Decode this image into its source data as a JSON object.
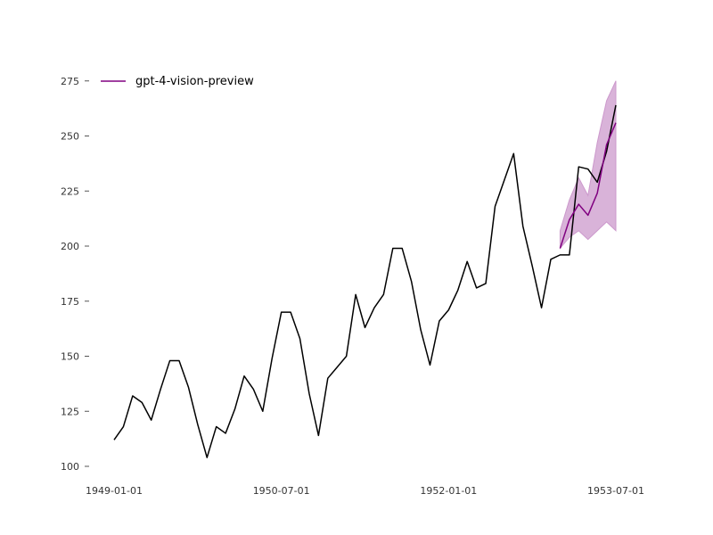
{
  "chart_data": {
    "type": "line",
    "title": "",
    "xlabel": "",
    "ylabel": "",
    "x_tick_labels": [
      "1949-01-01",
      "1950-07-01",
      "1952-01-01",
      "1953-07-01"
    ],
    "y_ticks": [
      100,
      125,
      150,
      175,
      200,
      225,
      250,
      275
    ],
    "ylim": [
      94,
      285
    ],
    "xlim": [
      "1948-10-01",
      "1954-01-01"
    ],
    "grid": false,
    "legend": {
      "position": "top-left",
      "entries": [
        "gpt-4-vision-preview"
      ]
    },
    "series": [
      {
        "color": "#000000",
        "x": [
          "1949-01",
          "1949-02",
          "1949-03",
          "1949-04",
          "1949-05",
          "1949-06",
          "1949-07",
          "1949-08",
          "1949-09",
          "1949-10",
          "1949-11",
          "1949-12",
          "1950-01",
          "1950-02",
          "1950-03",
          "1950-04",
          "1950-05",
          "1950-06",
          "1950-07",
          "1950-08",
          "1950-09",
          "1950-10",
          "1950-11",
          "1950-12",
          "1951-01",
          "1951-02",
          "1951-03",
          "1951-04",
          "1951-05",
          "1951-06",
          "1951-07",
          "1951-08",
          "1951-09",
          "1951-10",
          "1951-11",
          "1951-12",
          "1952-01",
          "1952-02",
          "1952-03",
          "1952-04",
          "1952-05",
          "1952-06",
          "1952-07",
          "1952-08",
          "1952-09",
          "1952-10",
          "1952-11",
          "1952-12",
          "1953-01",
          "1953-02",
          "1953-03",
          "1953-04",
          "1953-05",
          "1953-06",
          "1953-07"
        ],
        "values": [
          112,
          118,
          132,
          129,
          121,
          135,
          148,
          148,
          136,
          119,
          104,
          118,
          115,
          126,
          141,
          135,
          125,
          149,
          170,
          170,
          158,
          133,
          114,
          140,
          145,
          150,
          178,
          163,
          172,
          178,
          199,
          199,
          184,
          162,
          146,
          166,
          171,
          180,
          193,
          181,
          183,
          218,
          230,
          242,
          209,
          191,
          172,
          194,
          196,
          196,
          236,
          235,
          229,
          243,
          264
        ]
      },
      {
        "name": "gpt-4-vision-preview",
        "color": "#800080",
        "x": [
          "1953-01",
          "1953-02",
          "1953-03",
          "1953-04",
          "1953-05",
          "1953-06",
          "1953-07"
        ],
        "values": [
          199,
          212,
          219,
          214,
          224,
          246,
          256
        ],
        "lower": [
          199,
          204,
          207,
          203,
          207,
          211,
          207
        ],
        "upper": [
          207,
          221,
          231,
          223,
          247,
          266,
          275
        ],
        "band_color": "#cc99cc"
      }
    ]
  }
}
